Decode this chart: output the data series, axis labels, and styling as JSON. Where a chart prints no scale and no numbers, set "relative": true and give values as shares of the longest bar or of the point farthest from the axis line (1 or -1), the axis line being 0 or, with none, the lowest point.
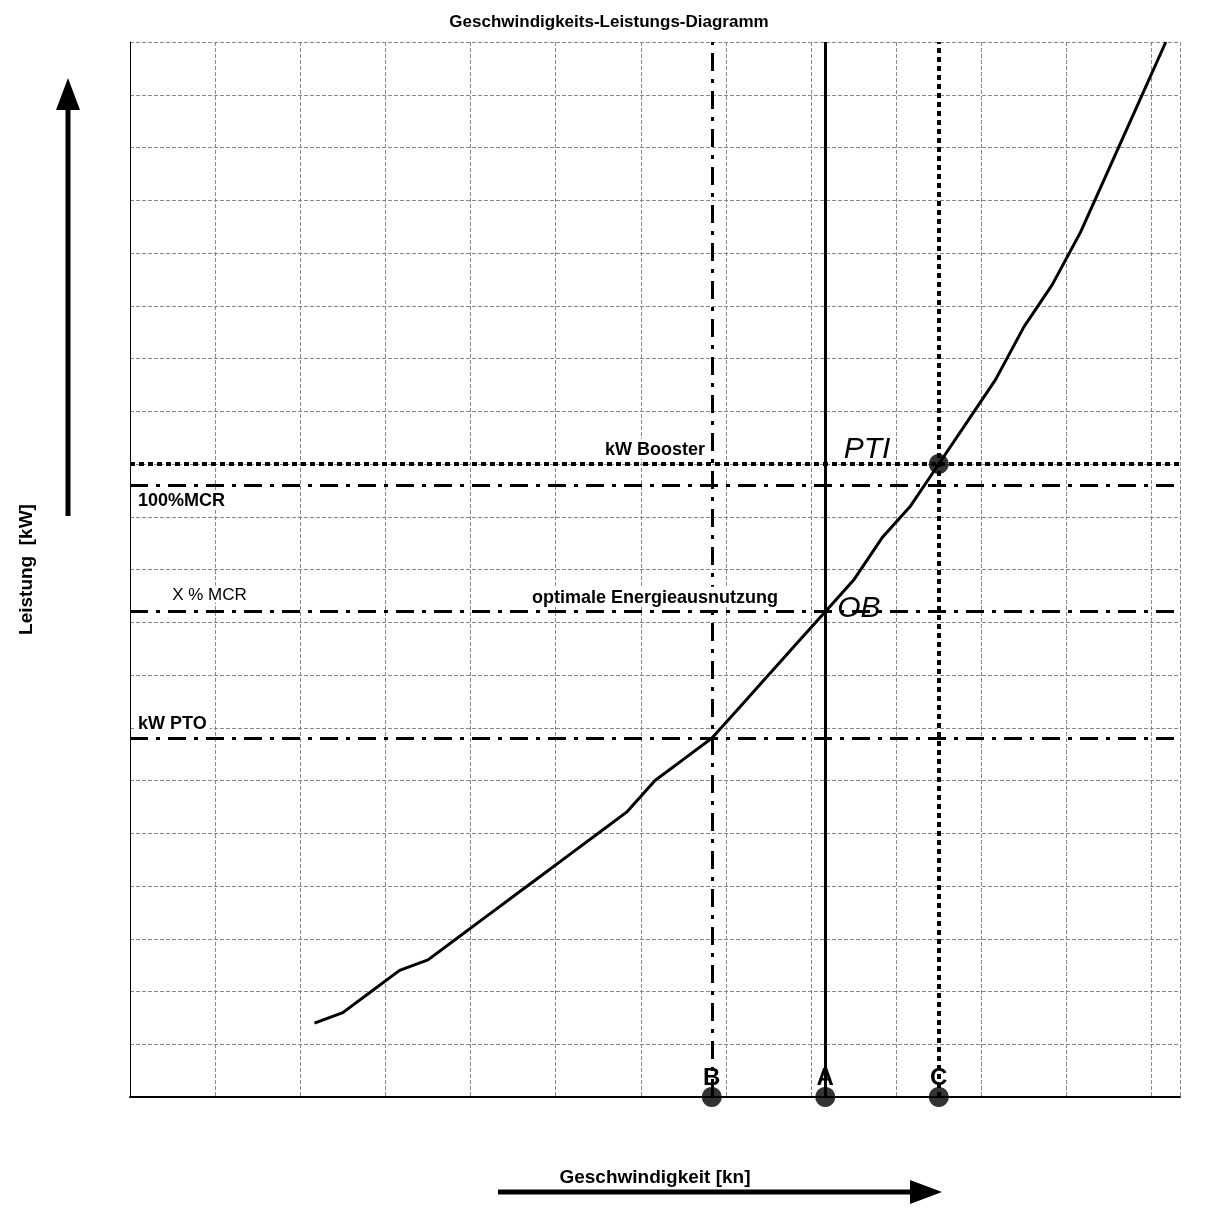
{
  "chart_data": {
    "type": "line",
    "title": "Geschwindigkeits-Leistungs-Diagramm",
    "xlabel": "Geschwindigkeit [kn]",
    "ylabel": "Leistung  [kW]",
    "relative": true,
    "grid": true,
    "marker": "none",
    "line_style": "solid",
    "categories": [
      null,
      null,
      null,
      null,
      null,
      null,
      null,
      null,
      null,
      null,
      null,
      null,
      null,
      null,
      null,
      null,
      null,
      null,
      null,
      null,
      "B",
      null,
      null,
      null,
      "A",
      null,
      null,
      null,
      "C",
      null,
      null,
      null,
      null,
      null,
      null,
      null,
      null
    ],
    "series": [
      {
        "color": "#000000",
        "values": [
          null,
          null,
          null,
          null,
          null,
          null,
          0.07,
          0.08,
          0.1,
          0.12,
          0.13,
          0.15,
          0.17,
          0.19,
          0.21,
          0.23,
          0.25,
          0.27,
          0.3,
          0.32,
          0.34,
          0.37,
          0.4,
          0.43,
          0.46,
          0.49,
          0.53,
          0.56,
          0.6,
          0.64,
          0.68,
          0.73,
          0.77,
          0.82,
          0.88,
          0.94,
          1.0
        ]
      },
      {
        "type": "scatter",
        "color": "#000000",
        "marker": "circle",
        "x": [
          "B",
          "A",
          "C",
          "C"
        ],
        "values": [
          0,
          0,
          0,
          0.6
        ]
      }
    ],
    "ref_lines": [
      {
        "axis": "y",
        "value": 0.58,
        "label": "100%MCR",
        "line_style": "dashed",
        "color": "#000000"
      },
      {
        "axis": "y",
        "value": 0.6,
        "label": "kW Booster",
        "line_style": "dotted",
        "color": "#000000"
      },
      {
        "axis": "y",
        "value": 0.46,
        "label": "optimale Energieausnutzung",
        "line_style": "dashed",
        "color": "#000000"
      },
      {
        "axis": "y",
        "value": 0.34,
        "label": "kW PTO",
        "line_style": "dashed",
        "color": "#000000"
      },
      {
        "axis": "x",
        "value": "B",
        "line_style": "dashed",
        "color": "#000000"
      },
      {
        "axis": "x",
        "value": "A",
        "line_style": "solid",
        "color": "#000000"
      },
      {
        "axis": "x",
        "value": "C",
        "line_style": "dotted",
        "color": "#000000"
      }
    ],
    "annotations": [
      "X % MCR",
      {
        "text": "OB",
        "x": "A",
        "y": 0.46
      },
      {
        "text": "PTI",
        "x": "C",
        "y": 0.6
      }
    ]
  }
}
